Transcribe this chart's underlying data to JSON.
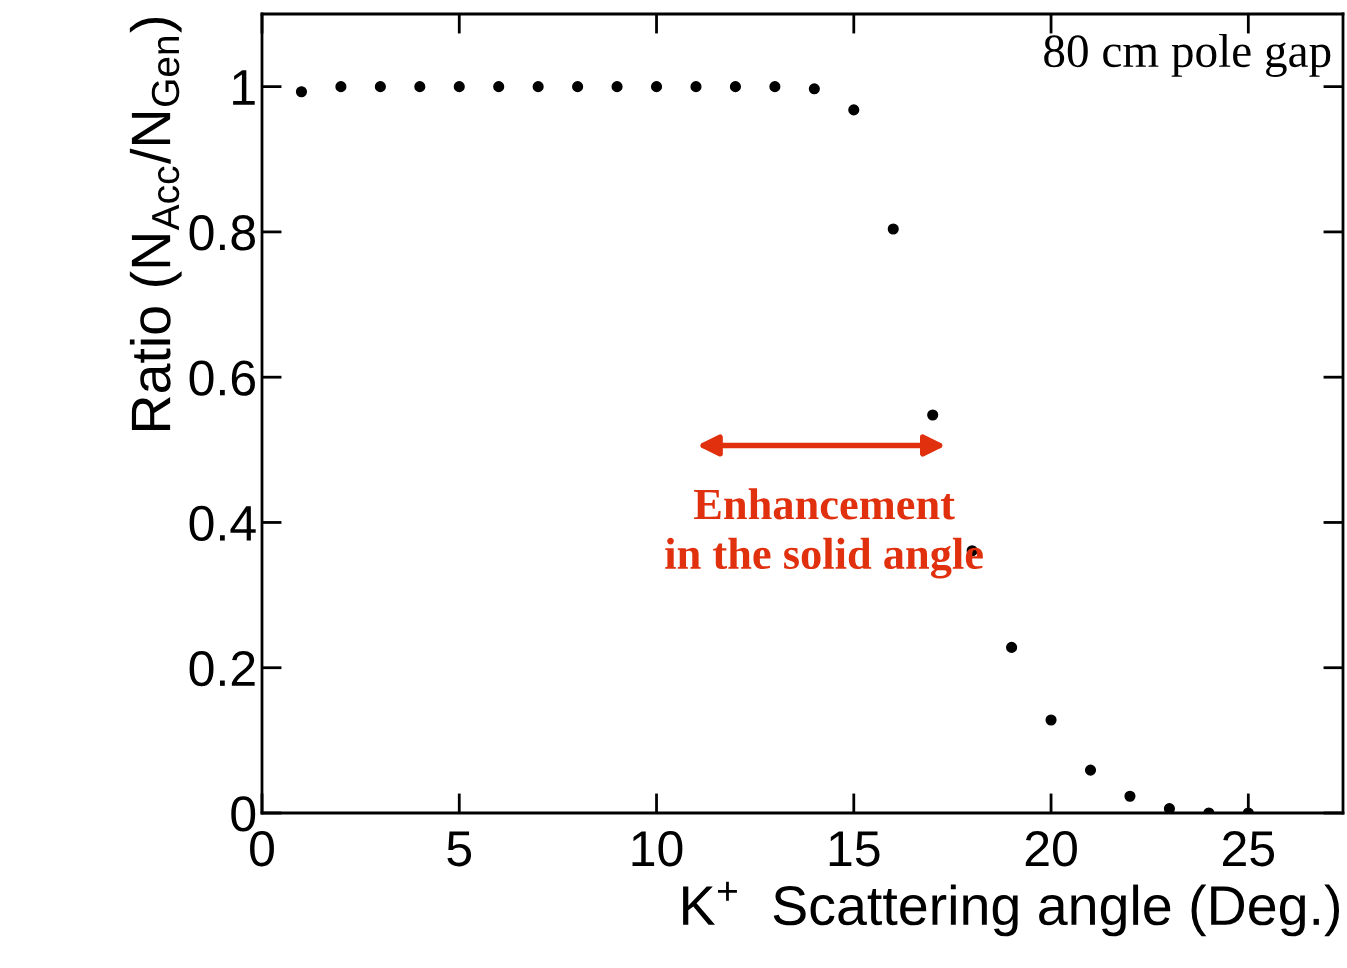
{
  "chart_data": {
    "type": "scatter",
    "xlabel": "K$^{+}$  Scattering angle (Deg.)",
    "ylabel": "Ratio (N$_{Acc}$/N$_{Gen}$)",
    "x": [
      1,
      2,
      3,
      4,
      5,
      6,
      7,
      8,
      9,
      10,
      11,
      12,
      13,
      14,
      15,
      16,
      17,
      18,
      19,
      20,
      21,
      22,
      23,
      24,
      25
    ],
    "values": [
      0.993,
      1.0,
      1.0,
      1.0,
      1.0,
      1.0,
      1.0,
      1.0,
      1.0,
      1.0,
      1.0,
      1.0,
      1.0,
      0.997,
      0.968,
      0.804,
      0.548,
      0.361,
      0.228,
      0.128,
      0.059,
      0.023,
      0.006,
      0.0,
      0.0
    ],
    "color": "#000000",
    "marker": "circle",
    "grid": false,
    "legend": false,
    "xlim": [
      0,
      27.4
    ],
    "ylim": [
      0,
      1.1
    ],
    "xticks": [
      0,
      5,
      10,
      15,
      20,
      25
    ],
    "yticks": [
      0,
      0.2,
      0.4,
      0.6,
      0.8,
      1
    ],
    "annotations": [
      "80 cm pole gap",
      "Enhancement\nin the solid angle"
    ]
  }
}
